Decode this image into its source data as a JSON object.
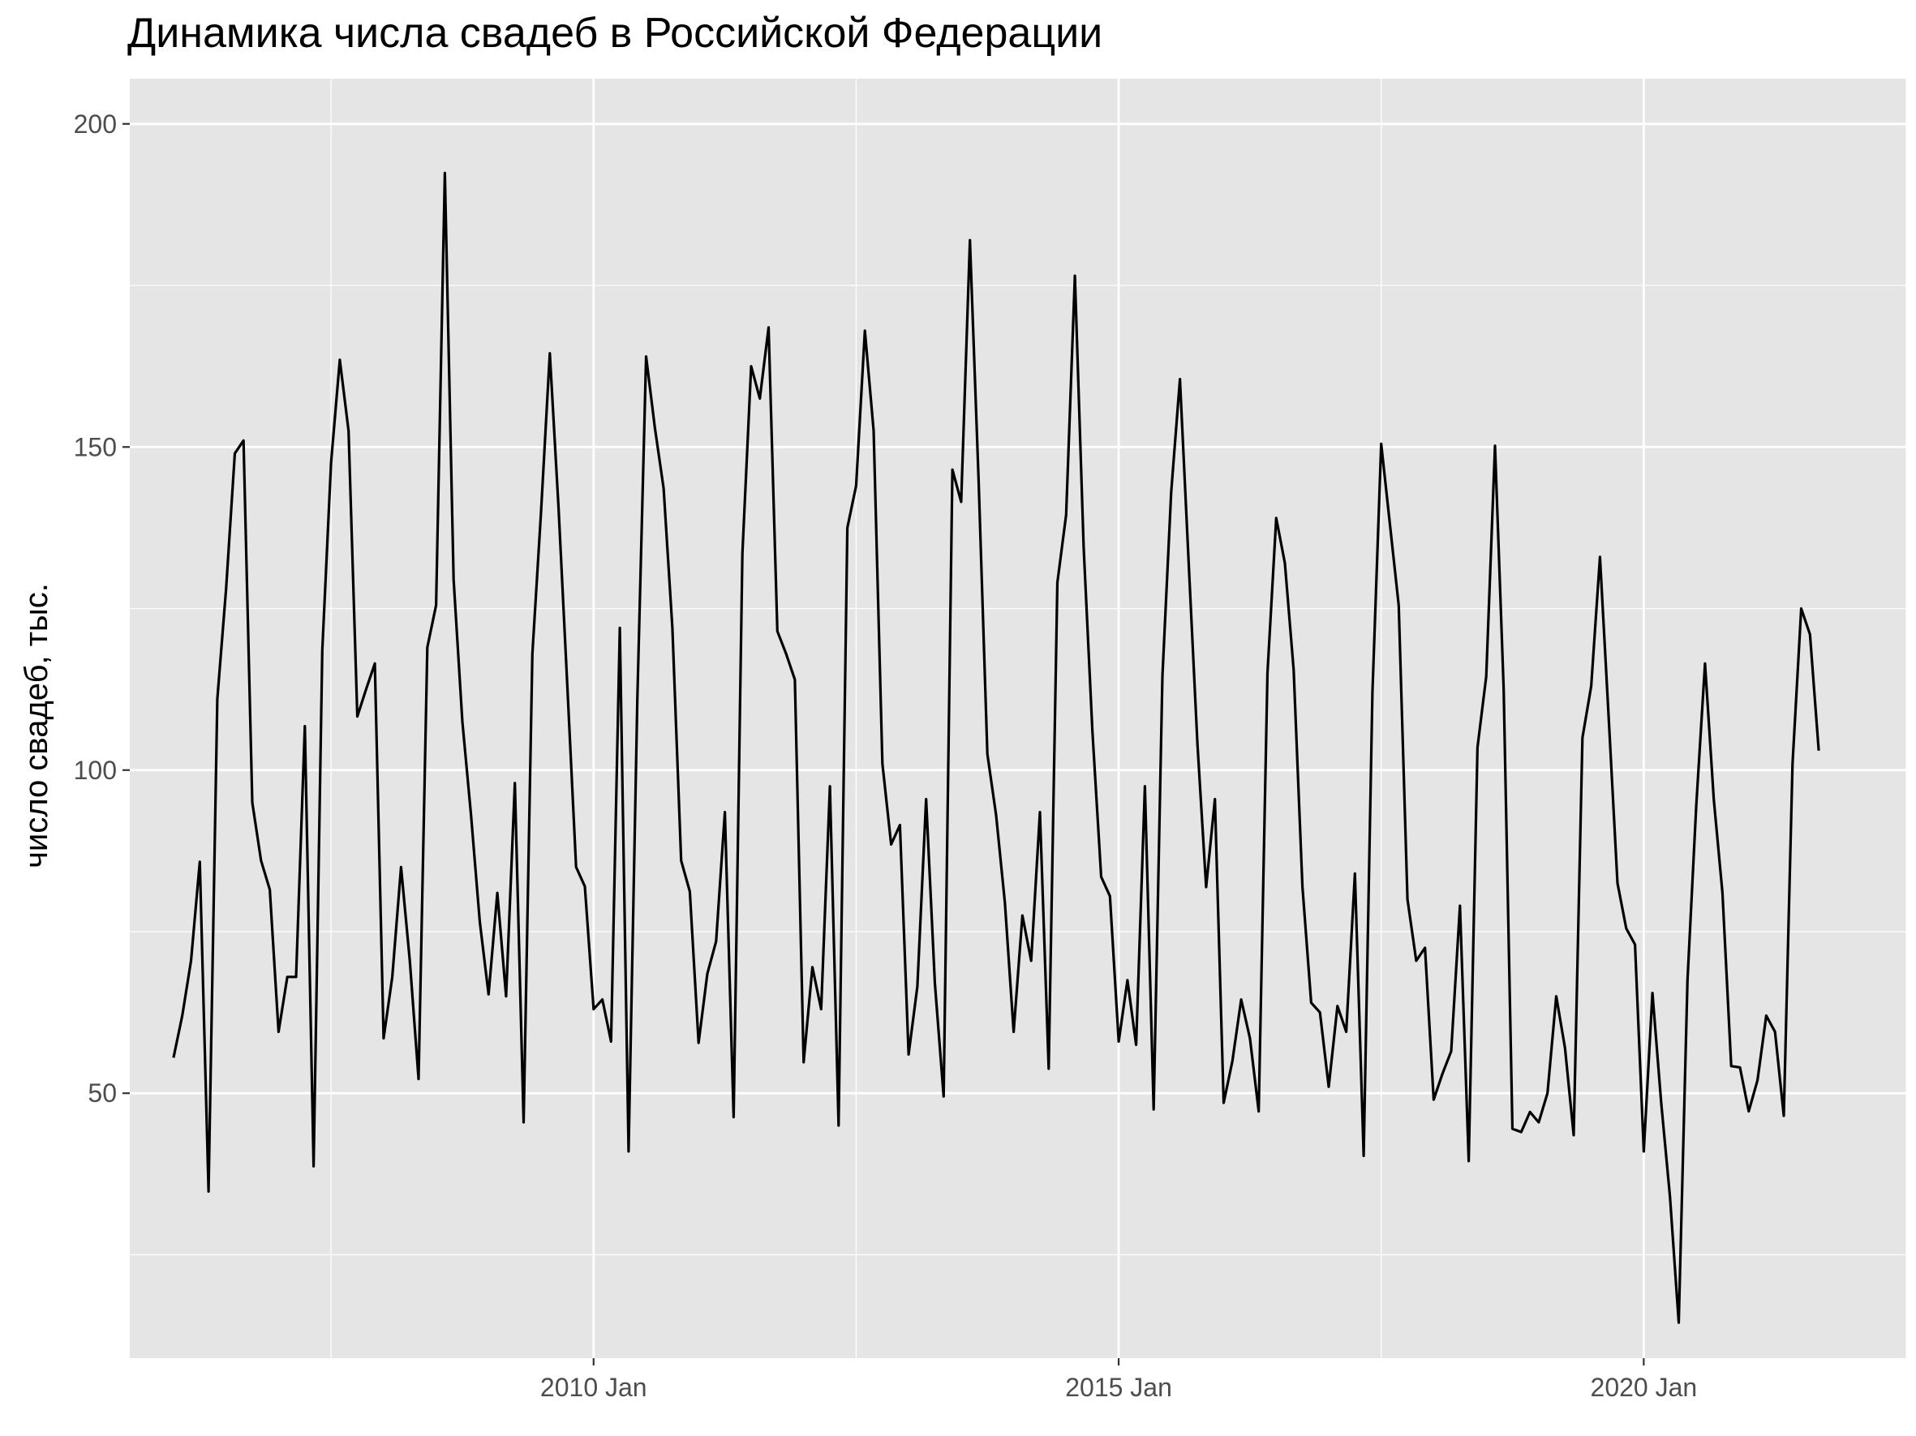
{
  "chart_data": {
    "type": "line",
    "title": "Динамика числа свадеб в Российской Федерации",
    "xlabel": "",
    "ylabel": "число свадеб, тыс.",
    "y_ticks": [
      50,
      100,
      150,
      200
    ],
    "y_tick_labels": [
      "50",
      "100",
      "150",
      "200"
    ],
    "ylim": [
      9,
      207
    ],
    "x_ticks": [
      "2010-01",
      "2015-01",
      "2020-01"
    ],
    "x_tick_labels": [
      "2010 Jan",
      "2015 Jan",
      "2020 Jan"
    ],
    "xlim": [
      "2005-08",
      "2022-07"
    ],
    "grid": true,
    "legend": "none",
    "colors": {
      "panel": "#e5e5e5",
      "grid": "#ffffff",
      "line": "#000000"
    },
    "start_month": "2006-01",
    "frequency": "monthly",
    "values": [
      55.5,
      62,
      70.5,
      85.8,
      34.8,
      111,
      128,
      149,
      151,
      95,
      86,
      81.5,
      59.5,
      68,
      68,
      106.8,
      38.7,
      118.5,
      147.5,
      163.5,
      152.5,
      108.3,
      112.5,
      116.5,
      58.5,
      68,
      85,
      70.5,
      52.2,
      119,
      125.5,
      192.4,
      129.5,
      107.5,
      93,
      76.5,
      65.3,
      81,
      65,
      98,
      45.5,
      118,
      140,
      164.5,
      140.5,
      113,
      85,
      82,
      63,
      64.5,
      58,
      122,
      41,
      111,
      164,
      153,
      143.6,
      122,
      86,
      81.2,
      57.8,
      68.5,
      73.5,
      93.5,
      46.3,
      133.5,
      162.5,
      157.5,
      168.5,
      121.5,
      118,
      114,
      54.8,
      69.5,
      63,
      97.5,
      45,
      137.5,
      144,
      168,
      152.5,
      101,
      88.5,
      91.5,
      56,
      66.5,
      95.5,
      67,
      49.5,
      146.5,
      141.5,
      182,
      144.5,
      102.5,
      93,
      79.5,
      59.5,
      77.5,
      70.5,
      93.5,
      53.8,
      129,
      139.5,
      176.5,
      134.5,
      106,
      83.5,
      80.5,
      58,
      67.5,
      57.5,
      97.5,
      47.5,
      114.5,
      143,
      160.5,
      132,
      104,
      81.9,
      95.5,
      48.5,
      55,
      64.5,
      58.5,
      47.2,
      115,
      139,
      132,
      115.5,
      82,
      64,
      62.5,
      51,
      63.5,
      59.5,
      84,
      40.3,
      112,
      150.5,
      138,
      125.5,
      80,
      70.5,
      72.5,
      49,
      53,
      56.5,
      79,
      39.5,
      103.5,
      114.5,
      150.2,
      112.5,
      44.5,
      44,
      47.1,
      45.5,
      50,
      65,
      57,
      43.5,
      105,
      113,
      133,
      108,
      82.5,
      75.5,
      73,
      41,
      65.5,
      48.5,
      34,
      14.5,
      67.5,
      94.5,
      116.5,
      95.5,
      81,
      54.2,
      54,
      47.2,
      52,
      62,
      59.5,
      46.5,
      101,
      125,
      121,
      103
    ]
  }
}
